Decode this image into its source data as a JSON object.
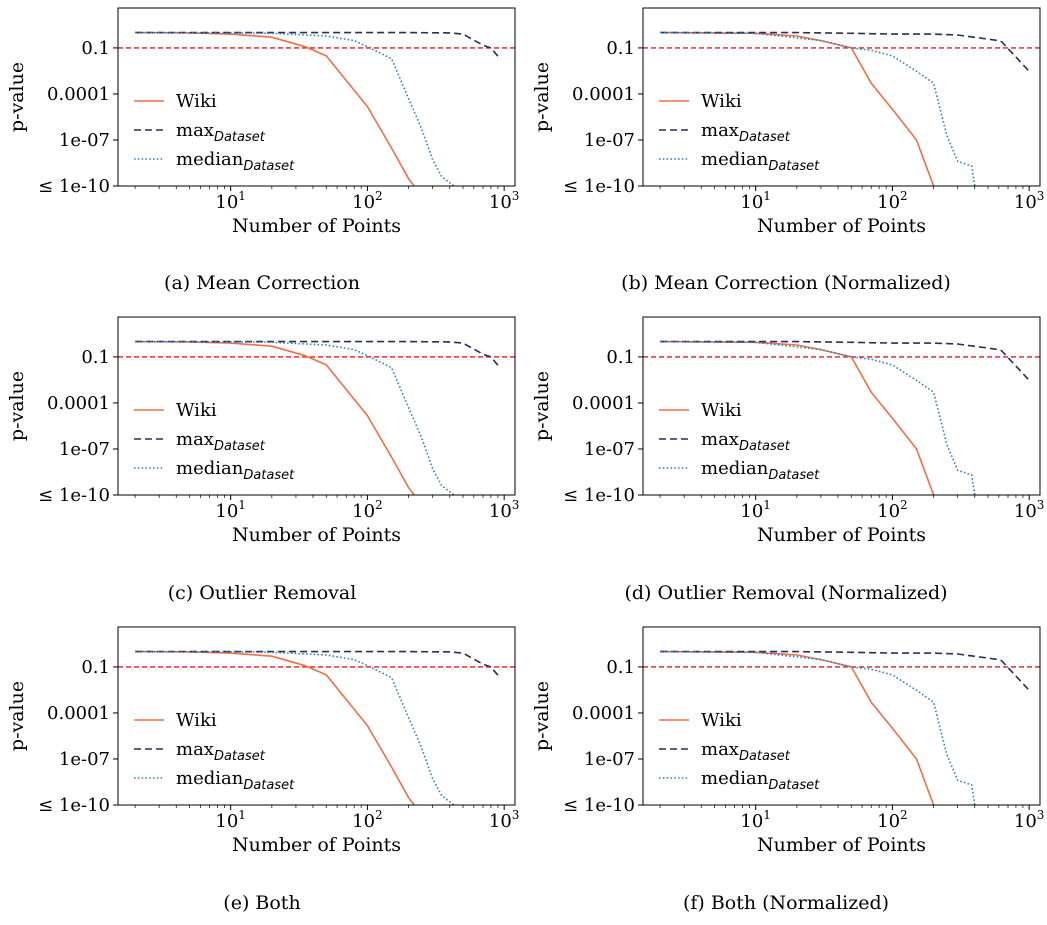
{
  "chart_data": [
    {
      "type": "line",
      "caption": "(a) Mean Correction",
      "xlabel": "Number of Points",
      "ylabel": "p-value",
      "xscale": "log",
      "yscale": "log",
      "xlim": [
        1.5,
        1200
      ],
      "ylim": [
        1e-10,
        40
      ],
      "xticks": [
        {
          "value": 10,
          "base": "10",
          "exp": "1"
        },
        {
          "value": 100,
          "base": "10",
          "exp": "2"
        },
        {
          "value": 1000,
          "base": "10",
          "exp": "3"
        }
      ],
      "yticks": [
        {
          "value": 0.1,
          "label": "0.1"
        },
        {
          "value": 0.0001,
          "label": "0.0001"
        },
        {
          "value": 1e-07,
          "label": "1e-07"
        },
        {
          "value": 1e-10,
          "label": "≤ 1e-10"
        }
      ],
      "threshold": {
        "y": 0.1,
        "color": "#e41a1c"
      },
      "legend": {
        "placement": "center-left"
      },
      "series": [
        {
          "name": "Wiki",
          "color": "#f46d43",
          "dash": "solid",
          "x": [
            2,
            5,
            10,
            20,
            35,
            50,
            100,
            150,
            200,
            220
          ],
          "y": [
            1,
            0.95,
            0.8,
            0.5,
            0.12,
            0.03,
            1.5e-05,
            3e-08,
            3e-10,
            1e-10
          ]
        },
        {
          "name": "max",
          "sub": "Dataset",
          "color": "#2b2c59",
          "dash": "dashed",
          "x": [
            2,
            10,
            50,
            100,
            200,
            400,
            500,
            700,
            800,
            930
          ],
          "y": [
            1,
            1,
            1,
            1,
            1,
            0.95,
            0.8,
            0.15,
            0.1,
            0.02
          ]
        },
        {
          "name": "median",
          "sub": "Dataset",
          "color": "#3182bd",
          "dash": "dotted",
          "x": [
            2,
            10,
            20,
            50,
            80,
            100,
            150,
            200,
            250,
            300,
            350,
            430
          ],
          "y": [
            1,
            0.95,
            0.9,
            0.6,
            0.3,
            0.12,
            0.02,
            5e-05,
            5e-07,
            5e-09,
            4e-10,
            1e-10
          ]
        }
      ]
    },
    {
      "type": "line",
      "caption": "(b) Mean Correction (Normalized)",
      "xlabel": "Number of Points",
      "ylabel": "p-value",
      "xscale": "log",
      "yscale": "log",
      "xlim": [
        1.5,
        1200
      ],
      "ylim": [
        1e-10,
        40
      ],
      "xticks": [
        {
          "value": 10,
          "base": "10",
          "exp": "1"
        },
        {
          "value": 100,
          "base": "10",
          "exp": "2"
        },
        {
          "value": 1000,
          "base": "10",
          "exp": "3"
        }
      ],
      "yticks": [
        {
          "value": 0.1,
          "label": "0.1"
        },
        {
          "value": 0.0001,
          "label": "0.0001"
        },
        {
          "value": 1e-07,
          "label": "1e-07"
        },
        {
          "value": 1e-10,
          "label": "≤ 1e-10"
        }
      ],
      "threshold": {
        "y": 0.1,
        "color": "#e41a1c"
      },
      "legend": {
        "placement": "center-left"
      },
      "series": [
        {
          "name": "Wiki",
          "color": "#f46d43",
          "dash": "solid",
          "x": [
            2,
            10,
            20,
            30,
            50,
            70,
            100,
            150,
            200
          ],
          "y": [
            1,
            0.9,
            0.6,
            0.3,
            0.1,
            0.0005,
            1e-05,
            1e-07,
            1e-10
          ]
        },
        {
          "name": "max",
          "sub": "Dataset",
          "color": "#2b2c59",
          "dash": "dashed",
          "x": [
            2,
            20,
            50,
            100,
            200,
            300,
            600,
            630,
            1000
          ],
          "y": [
            1,
            1,
            0.9,
            0.8,
            0.8,
            0.7,
            0.3,
            0.25,
            0.003
          ]
        },
        {
          "name": "median",
          "sub": "Dataset",
          "color": "#3182bd",
          "dash": "dotted",
          "x": [
            2,
            10,
            30,
            50,
            70,
            100,
            150,
            200,
            250,
            300,
            380,
            400
          ],
          "y": [
            1,
            0.9,
            0.3,
            0.1,
            0.07,
            0.03,
            0.003,
            0.0005,
            2e-07,
            4e-09,
            2e-09,
            1e-10
          ]
        }
      ]
    },
    {
      "type": "line",
      "caption": "(c) Outlier Removal",
      "xlabel": "Number of Points",
      "ylabel": "p-value",
      "xscale": "log",
      "yscale": "log",
      "xlim": [
        1.5,
        1200
      ],
      "ylim": [
        1e-10,
        40
      ],
      "xticks": [
        {
          "value": 10,
          "base": "10",
          "exp": "1"
        },
        {
          "value": 100,
          "base": "10",
          "exp": "2"
        },
        {
          "value": 1000,
          "base": "10",
          "exp": "3"
        }
      ],
      "yticks": [
        {
          "value": 0.1,
          "label": "0.1"
        },
        {
          "value": 0.0001,
          "label": "0.0001"
        },
        {
          "value": 1e-07,
          "label": "1e-07"
        },
        {
          "value": 1e-10,
          "label": "≤ 1e-10"
        }
      ],
      "threshold": {
        "y": 0.1,
        "color": "#e41a1c"
      },
      "legend": {
        "placement": "center-left"
      },
      "series": [
        {
          "name": "Wiki",
          "color": "#f46d43",
          "dash": "solid",
          "x": [
            2,
            5,
            10,
            20,
            35,
            50,
            100,
            150,
            200,
            220
          ],
          "y": [
            1,
            0.95,
            0.8,
            0.5,
            0.12,
            0.03,
            1.5e-05,
            3e-08,
            3e-10,
            1e-10
          ]
        },
        {
          "name": "max",
          "sub": "Dataset",
          "color": "#2b2c59",
          "dash": "dashed",
          "x": [
            2,
            10,
            50,
            100,
            200,
            400,
            500,
            700,
            800,
            930
          ],
          "y": [
            1,
            1,
            1,
            1,
            1,
            0.95,
            0.8,
            0.15,
            0.1,
            0.02
          ]
        },
        {
          "name": "median",
          "sub": "Dataset",
          "color": "#3182bd",
          "dash": "dotted",
          "x": [
            2,
            10,
            20,
            50,
            80,
            100,
            150,
            200,
            250,
            300,
            350,
            430
          ],
          "y": [
            1,
            0.95,
            0.9,
            0.6,
            0.3,
            0.12,
            0.02,
            5e-05,
            5e-07,
            5e-09,
            4e-10,
            1e-10
          ]
        }
      ]
    },
    {
      "type": "line",
      "caption": "(d) Outlier Removal (Normalized)",
      "xlabel": "Number of Points",
      "ylabel": "p-value",
      "xscale": "log",
      "yscale": "log",
      "xlim": [
        1.5,
        1200
      ],
      "ylim": [
        1e-10,
        40
      ],
      "xticks": [
        {
          "value": 10,
          "base": "10",
          "exp": "1"
        },
        {
          "value": 100,
          "base": "10",
          "exp": "2"
        },
        {
          "value": 1000,
          "base": "10",
          "exp": "3"
        }
      ],
      "yticks": [
        {
          "value": 0.1,
          "label": "0.1"
        },
        {
          "value": 0.0001,
          "label": "0.0001"
        },
        {
          "value": 1e-07,
          "label": "1e-07"
        },
        {
          "value": 1e-10,
          "label": "≤ 1e-10"
        }
      ],
      "threshold": {
        "y": 0.1,
        "color": "#e41a1c"
      },
      "legend": {
        "placement": "center-left"
      },
      "series": [
        {
          "name": "Wiki",
          "color": "#f46d43",
          "dash": "solid",
          "x": [
            2,
            10,
            20,
            30,
            50,
            70,
            100,
            150,
            200
          ],
          "y": [
            1,
            0.9,
            0.6,
            0.3,
            0.1,
            0.0005,
            1e-05,
            1e-07,
            1e-10
          ]
        },
        {
          "name": "max",
          "sub": "Dataset",
          "color": "#2b2c59",
          "dash": "dashed",
          "x": [
            2,
            20,
            50,
            100,
            200,
            300,
            600,
            630,
            1000
          ],
          "y": [
            1,
            1,
            0.9,
            0.8,
            0.8,
            0.7,
            0.3,
            0.25,
            0.003
          ]
        },
        {
          "name": "median",
          "sub": "Dataset",
          "color": "#3182bd",
          "dash": "dotted",
          "x": [
            2,
            10,
            30,
            50,
            70,
            100,
            150,
            200,
            250,
            300,
            380,
            400
          ],
          "y": [
            1,
            0.9,
            0.3,
            0.1,
            0.07,
            0.03,
            0.003,
            0.0005,
            2e-07,
            4e-09,
            2e-09,
            1e-10
          ]
        }
      ]
    },
    {
      "type": "line",
      "caption": "(e) Both",
      "xlabel": "Number of Points",
      "ylabel": "p-value",
      "xscale": "log",
      "yscale": "log",
      "xlim": [
        1.5,
        1200
      ],
      "ylim": [
        1e-10,
        40
      ],
      "xticks": [
        {
          "value": 10,
          "base": "10",
          "exp": "1"
        },
        {
          "value": 100,
          "base": "10",
          "exp": "2"
        },
        {
          "value": 1000,
          "base": "10",
          "exp": "3"
        }
      ],
      "yticks": [
        {
          "value": 0.1,
          "label": "0.1"
        },
        {
          "value": 0.0001,
          "label": "0.0001"
        },
        {
          "value": 1e-07,
          "label": "1e-07"
        },
        {
          "value": 1e-10,
          "label": "≤ 1e-10"
        }
      ],
      "threshold": {
        "y": 0.1,
        "color": "#e41a1c"
      },
      "legend": {
        "placement": "center-left"
      },
      "series": [
        {
          "name": "Wiki",
          "color": "#f46d43",
          "dash": "solid",
          "x": [
            2,
            5,
            10,
            20,
            35,
            50,
            100,
            150,
            200,
            220
          ],
          "y": [
            1,
            0.95,
            0.8,
            0.5,
            0.12,
            0.03,
            1.5e-05,
            3e-08,
            3e-10,
            1e-10
          ]
        },
        {
          "name": "max",
          "sub": "Dataset",
          "color": "#2b2c59",
          "dash": "dashed",
          "x": [
            2,
            10,
            50,
            100,
            200,
            400,
            500,
            700,
            800,
            930
          ],
          "y": [
            1,
            1,
            1,
            1,
            1,
            0.95,
            0.8,
            0.15,
            0.1,
            0.02
          ]
        },
        {
          "name": "median",
          "sub": "Dataset",
          "color": "#3182bd",
          "dash": "dotted",
          "x": [
            2,
            10,
            20,
            50,
            80,
            100,
            150,
            200,
            250,
            300,
            350,
            430
          ],
          "y": [
            1,
            0.95,
            0.9,
            0.6,
            0.3,
            0.12,
            0.02,
            5e-05,
            5e-07,
            5e-09,
            4e-10,
            1e-10
          ]
        }
      ]
    },
    {
      "type": "line",
      "caption": "(f) Both (Normalized)",
      "xlabel": "Number of Points",
      "ylabel": "p-value",
      "xscale": "log",
      "yscale": "log",
      "xlim": [
        1.5,
        1200
      ],
      "ylim": [
        1e-10,
        40
      ],
      "xticks": [
        {
          "value": 10,
          "base": "10",
          "exp": "1"
        },
        {
          "value": 100,
          "base": "10",
          "exp": "2"
        },
        {
          "value": 1000,
          "base": "10",
          "exp": "3"
        }
      ],
      "yticks": [
        {
          "value": 0.1,
          "label": "0.1"
        },
        {
          "value": 0.0001,
          "label": "0.0001"
        },
        {
          "value": 1e-07,
          "label": "1e-07"
        },
        {
          "value": 1e-10,
          "label": "≤ 1e-10"
        }
      ],
      "threshold": {
        "y": 0.1,
        "color": "#e41a1c"
      },
      "legend": {
        "placement": "center-left"
      },
      "series": [
        {
          "name": "Wiki",
          "color": "#f46d43",
          "dash": "solid",
          "x": [
            2,
            10,
            20,
            30,
            50,
            70,
            100,
            150,
            200
          ],
          "y": [
            1,
            0.9,
            0.6,
            0.3,
            0.1,
            0.0005,
            1e-05,
            1e-07,
            1e-10
          ]
        },
        {
          "name": "max",
          "sub": "Dataset",
          "color": "#2b2c59",
          "dash": "dashed",
          "x": [
            2,
            20,
            50,
            100,
            200,
            300,
            600,
            630,
            1000
          ],
          "y": [
            1,
            1,
            0.9,
            0.8,
            0.8,
            0.7,
            0.3,
            0.25,
            0.003
          ]
        },
        {
          "name": "median",
          "sub": "Dataset",
          "color": "#3182bd",
          "dash": "dotted",
          "x": [
            2,
            10,
            30,
            50,
            70,
            100,
            150,
            200,
            250,
            300,
            380,
            400
          ],
          "y": [
            1,
            0.9,
            0.3,
            0.1,
            0.07,
            0.03,
            0.003,
            0.0005,
            2e-07,
            4e-09,
            2e-09,
            1e-10
          ]
        }
      ]
    }
  ]
}
